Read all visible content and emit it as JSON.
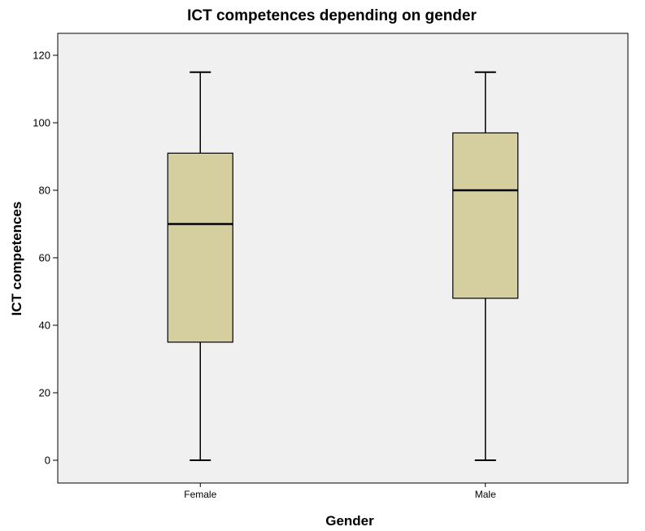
{
  "chart_data": {
    "type": "boxplot",
    "title": "ICT competences depending on gender",
    "xlabel": "Gender",
    "ylabel": "ICT competences",
    "ylim": [
      -7,
      126
    ],
    "yticks": [
      0,
      20,
      40,
      60,
      80,
      100,
      120
    ],
    "grid": false,
    "categories": [
      "Female",
      "Male"
    ],
    "boxes": [
      {
        "category": "Female",
        "min": 0,
        "q1": 35,
        "median": 70,
        "q3": 91,
        "max": 115
      },
      {
        "category": "Male",
        "min": 0,
        "q1": 48,
        "median": 80,
        "q3": 97,
        "max": 115
      }
    ],
    "colors": {
      "plot_background": "#f0f0f0",
      "box_fill": "#d5ce9e",
      "stroke": "#000000"
    }
  }
}
